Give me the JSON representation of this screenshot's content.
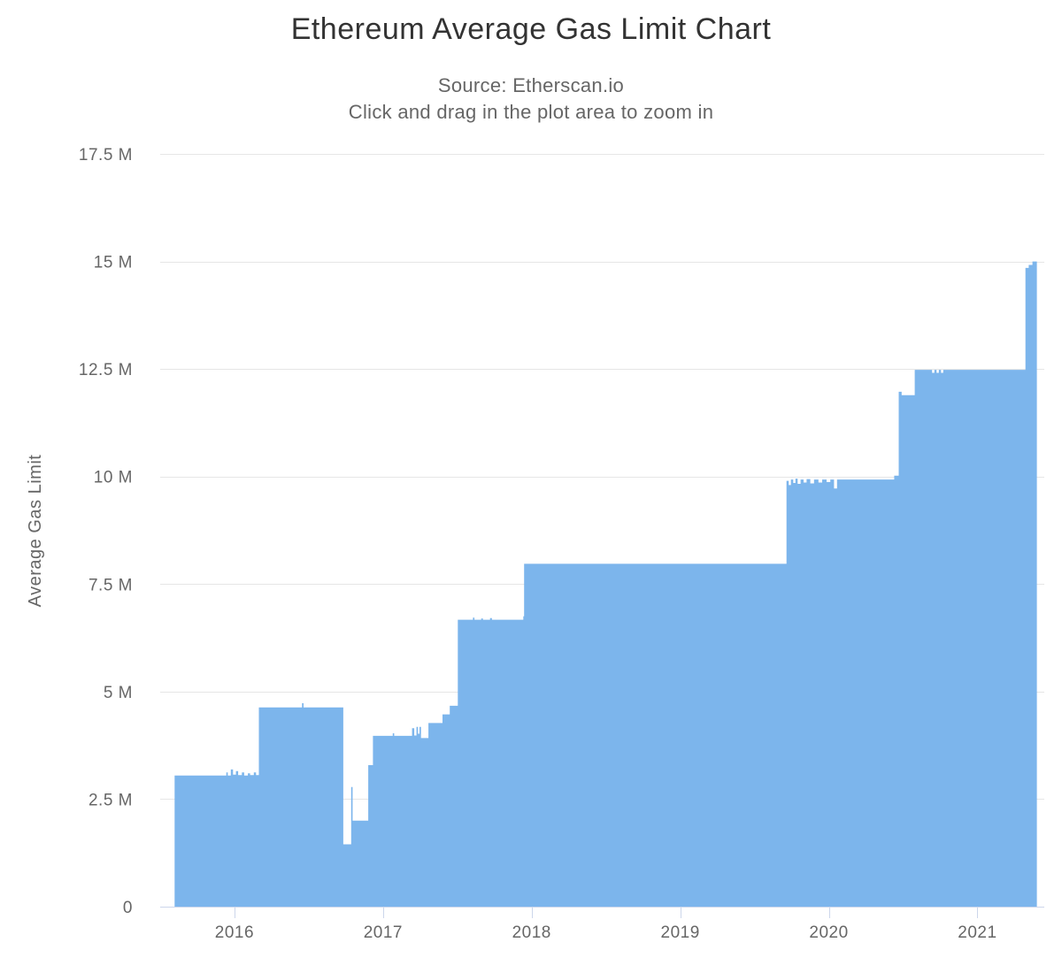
{
  "page": {
    "title": "Ethereum Average Gas Limit Chart",
    "subtitle_source": "Source: Etherscan.io",
    "subtitle_hint": "Click and drag in the plot area to zoom in"
  },
  "colors": {
    "series_area": "#7cb5ec",
    "gridline": "#e6e6e6",
    "axis_line": "#ccd6eb",
    "tick_mark": "#ccd6eb",
    "title_text": "#333333",
    "subtitle_text": "#666666",
    "label_text": "#666666",
    "background": "#ffffff"
  },
  "chart_data": {
    "type": "area",
    "title": "Ethereum Average Gas Limit Chart",
    "subtitle": [
      "Source: Etherscan.io",
      "Click and drag in the plot area to zoom in"
    ],
    "xlabel": "",
    "ylabel": "Average Gas Limit",
    "x_unit": "year (decimal)",
    "y_unit": "gas, millions",
    "xlim": [
      2015.5,
      2021.45
    ],
    "ylim": [
      0,
      17.5
    ],
    "grid": "horizontal-only",
    "legend": "none",
    "interpolation": "step-after",
    "x_ticks": [
      {
        "v": 2016,
        "label": "2016"
      },
      {
        "v": 2017,
        "label": "2017"
      },
      {
        "v": 2018,
        "label": "2018"
      },
      {
        "v": 2019,
        "label": "2019"
      },
      {
        "v": 2020,
        "label": "2020"
      },
      {
        "v": 2021,
        "label": "2021"
      }
    ],
    "y_ticks": [
      {
        "v": 0,
        "label": "0"
      },
      {
        "v": 2.5,
        "label": "2.5 M"
      },
      {
        "v": 5,
        "label": "5 M"
      },
      {
        "v": 7.5,
        "label": "7.5 M"
      },
      {
        "v": 10,
        "label": "10 M"
      },
      {
        "v": 12.5,
        "label": "12.5 M"
      },
      {
        "v": 15,
        "label": "15 M"
      },
      {
        "v": 17.5,
        "label": "17.5 M"
      }
    ],
    "series": [
      {
        "name": "Average Gas Limit",
        "points": [
          [
            2015.597,
            3.05
          ],
          [
            2015.94,
            3.05
          ],
          [
            2015.945,
            3.12
          ],
          [
            2015.955,
            3.05
          ],
          [
            2015.975,
            3.19
          ],
          [
            2015.99,
            3.07
          ],
          [
            2016.01,
            3.15
          ],
          [
            2016.025,
            3.06
          ],
          [
            2016.05,
            3.12
          ],
          [
            2016.065,
            3.05
          ],
          [
            2016.09,
            3.1
          ],
          [
            2016.105,
            3.06
          ],
          [
            2016.13,
            3.12
          ],
          [
            2016.145,
            3.06
          ],
          [
            2016.164,
            4.63
          ],
          [
            2016.45,
            4.63
          ],
          [
            2016.455,
            4.73
          ],
          [
            2016.465,
            4.63
          ],
          [
            2016.732,
            1.45
          ],
          [
            2016.775,
            1.45
          ],
          [
            2016.785,
            2.78
          ],
          [
            2016.795,
            2.0
          ],
          [
            2016.895,
            2.0
          ],
          [
            2016.9,
            3.29
          ],
          [
            2016.932,
            3.97
          ],
          [
            2017.06,
            3.97
          ],
          [
            2017.065,
            4.03
          ],
          [
            2017.075,
            3.97
          ],
          [
            2017.185,
            3.97
          ],
          [
            2017.195,
            4.15
          ],
          [
            2017.21,
            3.98
          ],
          [
            2017.225,
            4.18
          ],
          [
            2017.235,
            4.02
          ],
          [
            2017.245,
            4.18
          ],
          [
            2017.255,
            3.92
          ],
          [
            2017.305,
            4.27
          ],
          [
            2017.4,
            4.47
          ],
          [
            2017.449,
            4.67
          ],
          [
            2017.503,
            6.67
          ],
          [
            2017.6,
            6.67
          ],
          [
            2017.605,
            6.72
          ],
          [
            2017.615,
            6.67
          ],
          [
            2017.66,
            6.7
          ],
          [
            2017.672,
            6.67
          ],
          [
            2017.72,
            6.71
          ],
          [
            2017.732,
            6.67
          ],
          [
            2017.94,
            6.67
          ],
          [
            2017.944,
            6.75
          ],
          [
            2017.949,
            7.97
          ],
          [
            2019.711,
            7.97
          ],
          [
            2019.715,
            9.9
          ],
          [
            2019.73,
            9.8
          ],
          [
            2019.745,
            9.93
          ],
          [
            2019.76,
            9.85
          ],
          [
            2019.775,
            9.95
          ],
          [
            2019.79,
            9.83
          ],
          [
            2019.81,
            9.93
          ],
          [
            2019.83,
            9.86
          ],
          [
            2019.85,
            9.94
          ],
          [
            2019.875,
            9.84
          ],
          [
            2019.9,
            9.93
          ],
          [
            2019.93,
            9.86
          ],
          [
            2019.955,
            9.93
          ],
          [
            2019.985,
            9.87
          ],
          [
            2020.01,
            9.93
          ],
          [
            2020.035,
            9.72
          ],
          [
            2020.055,
            9.93
          ],
          [
            2020.42,
            9.93
          ],
          [
            2020.44,
            10.02
          ],
          [
            2020.47,
            11.97
          ],
          [
            2020.49,
            11.89
          ],
          [
            2020.578,
            12.48
          ],
          [
            2020.685,
            12.48
          ],
          [
            2020.695,
            12.41
          ],
          [
            2020.71,
            12.48
          ],
          [
            2020.725,
            12.41
          ],
          [
            2020.74,
            12.48
          ],
          [
            2020.755,
            12.41
          ],
          [
            2020.77,
            12.48
          ],
          [
            2021.318,
            12.48
          ],
          [
            2021.323,
            14.85
          ],
          [
            2021.345,
            14.92
          ],
          [
            2021.37,
            15.0
          ],
          [
            2021.4,
            15.0
          ]
        ]
      }
    ]
  }
}
